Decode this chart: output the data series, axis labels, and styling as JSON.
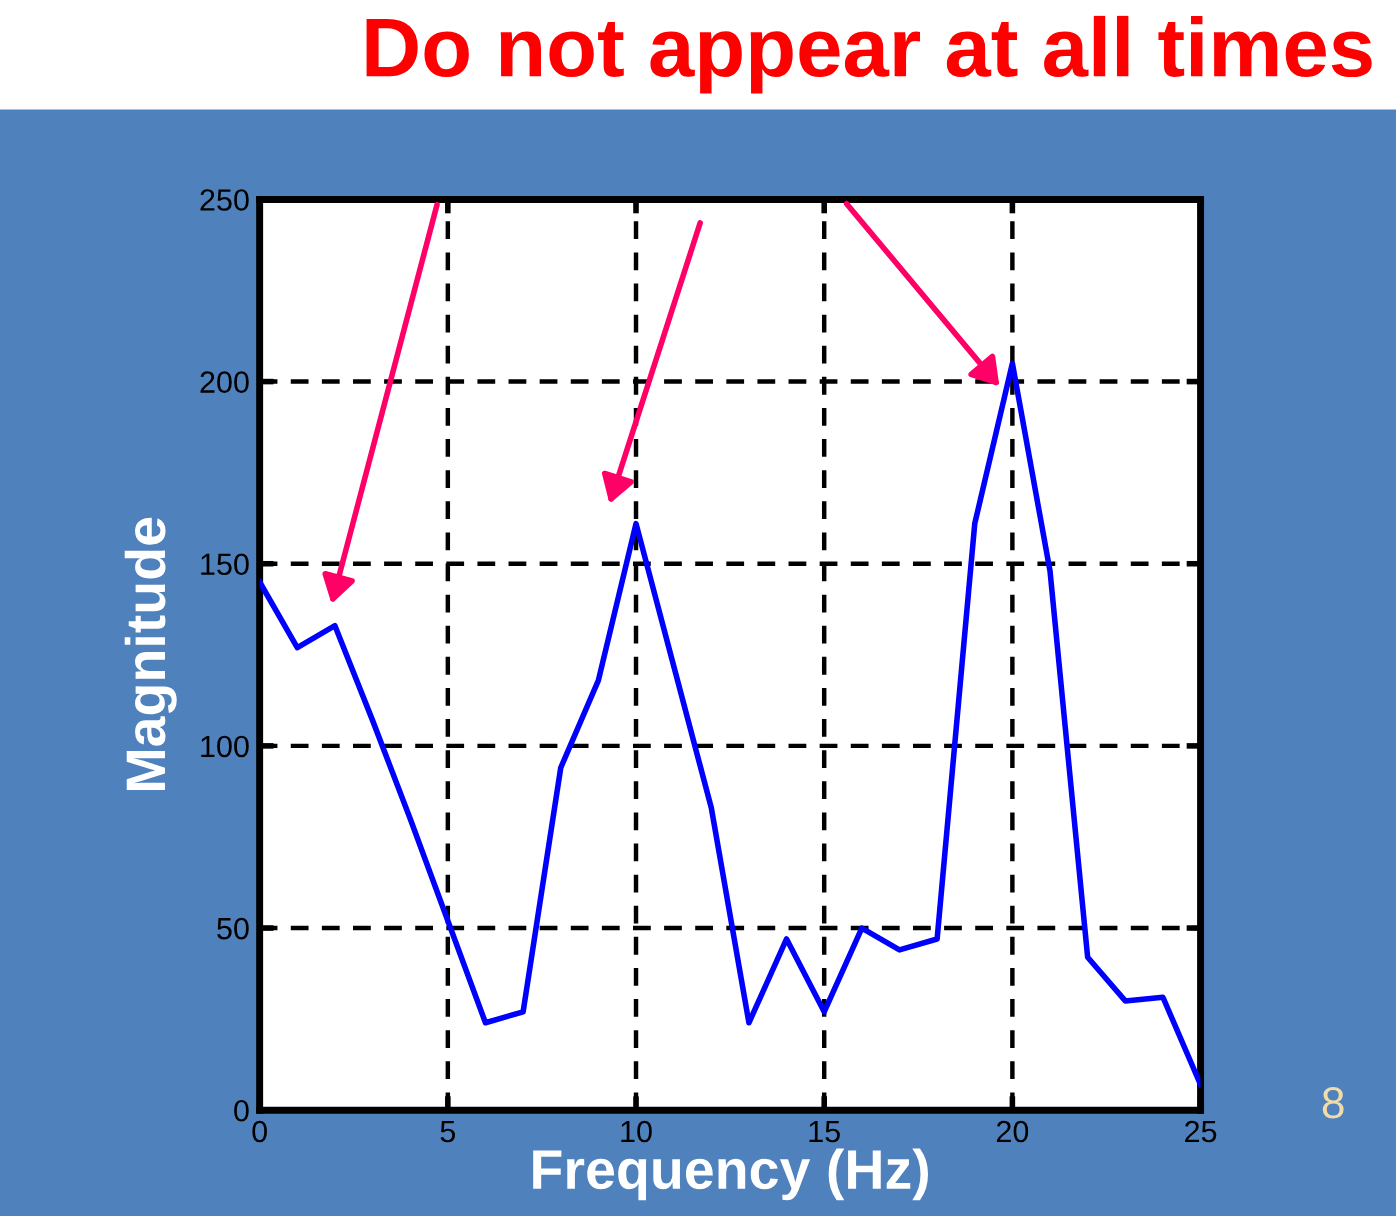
{
  "chart_data": {
    "type": "line",
    "title": "Do not appear at all times",
    "xlabel": "Frequency (Hz)",
    "ylabel": "Magnitude",
    "x": [
      0,
      1,
      2,
      3,
      4,
      5,
      6,
      7,
      8,
      9,
      10,
      11,
      12,
      13,
      14,
      15,
      16,
      17,
      18,
      19,
      20,
      21,
      22,
      23,
      24,
      25
    ],
    "series": [
      {
        "color": "#0000ff",
        "values": [
          145,
          127,
          133,
          107,
          80,
          52,
          24,
          27,
          94,
          118,
          161,
          122,
          83,
          24,
          47,
          27,
          50,
          44,
          47,
          161,
          205,
          148,
          42,
          30,
          31,
          7
        ]
      }
    ],
    "xlim": [
      0,
      25
    ],
    "ylim": [
      0,
      250
    ],
    "xticks": [
      0,
      5,
      10,
      15,
      20,
      25
    ],
    "yticks": [
      0,
      50,
      100,
      150,
      200,
      250
    ],
    "grid": true,
    "line_style": "solid",
    "marker": "none",
    "annotations": [
      "8"
    ]
  }
}
